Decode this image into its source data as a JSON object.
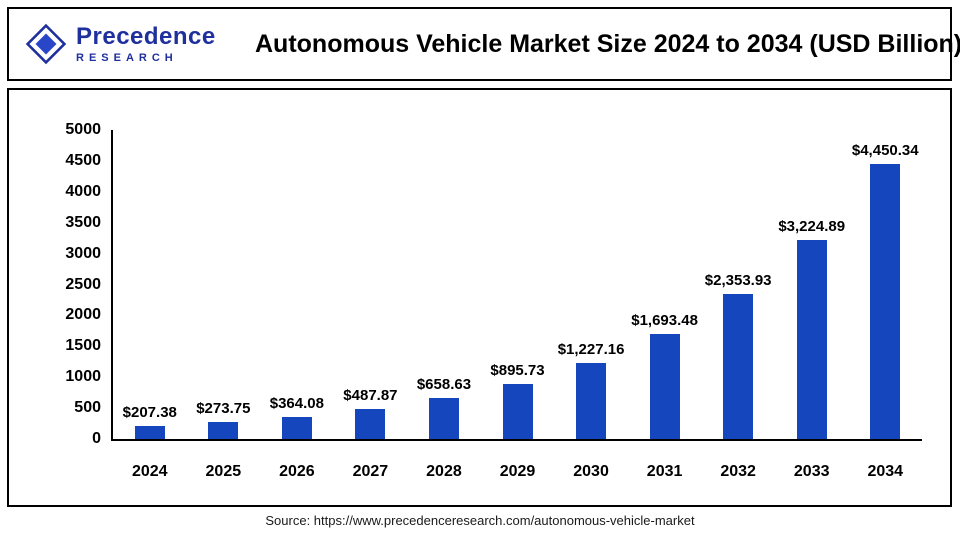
{
  "header": {
    "logo": {
      "line1": "Precedence",
      "line2": "RESEARCH",
      "color": "#1e2f9e"
    },
    "title": "Autonomous Vehicle Market Size 2024 to 2034 (USD Billion)"
  },
  "chart_data": {
    "type": "bar",
    "title": "Autonomous Vehicle Market Size 2024 to 2034 (USD Billion)",
    "categories": [
      "2024",
      "2025",
      "2026",
      "2027",
      "2028",
      "2029",
      "2030",
      "2031",
      "2032",
      "2033",
      "2034"
    ],
    "values": [
      207.38,
      273.75,
      364.08,
      487.87,
      658.63,
      895.73,
      1227.16,
      1693.48,
      2353.93,
      3224.89,
      4450.34
    ],
    "value_labels": [
      "$207.38",
      "$273.75",
      "$364.08",
      "$487.87",
      "$658.63",
      "$895.73",
      "$1,227.16",
      "$1,693.48",
      "$2,353.93",
      "$3,224.89",
      "$4,450.34"
    ],
    "xlabel": "",
    "ylabel": "",
    "ylim": [
      0,
      5000
    ],
    "yticks": [
      0,
      500,
      1000,
      1500,
      2000,
      2500,
      3000,
      3500,
      4000,
      4500,
      5000
    ],
    "bar_color": "#1546be",
    "grid": false,
    "legend": false
  },
  "footer": {
    "source": "Source: https://www.precedenceresearch.com/autonomous-vehicle-market"
  }
}
